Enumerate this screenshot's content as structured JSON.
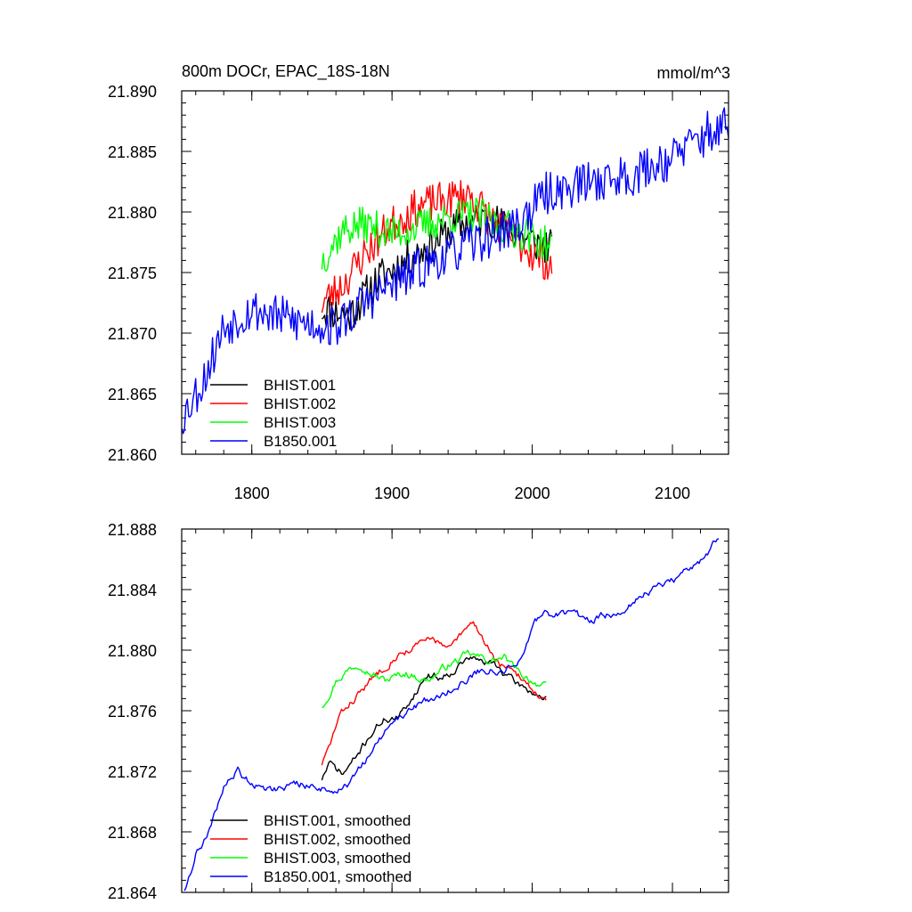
{
  "chart_data": [
    {
      "type": "line",
      "title": "800m DOCr, EPAC_18S-18N",
      "units": "mmol/m^3",
      "xlim": [
        1750,
        2140
      ],
      "ylim": [
        21.86,
        21.89
      ],
      "xticks": [
        1800,
        1900,
        2000,
        2100
      ],
      "yticks": [
        21.86,
        21.865,
        21.87,
        21.875,
        21.88,
        21.885,
        21.89
      ],
      "ytick_labels": [
        "21.860",
        "21.865",
        "21.870",
        "21.875",
        "21.880",
        "21.885",
        "21.890"
      ],
      "xtick_labels": [
        "1800",
        "1900",
        "2000",
        "2100"
      ],
      "show_xtick_labels": true,
      "legend_position": "bottom-left",
      "series": [
        {
          "name": "BHIST.001",
          "color": "#000000",
          "kind": "noisy",
          "x": [
            1850,
            1870,
            1890,
            1910,
            1930,
            1950,
            1970,
            1990,
            2014
          ],
          "y": [
            21.872,
            21.8715,
            21.8745,
            21.876,
            21.8775,
            21.879,
            21.8795,
            21.878,
            21.877
          ],
          "noise": 0.0016,
          "seed": 11
        },
        {
          "name": "BHIST.002",
          "color": "#ff0000",
          "kind": "noisy",
          "x": [
            1850,
            1865,
            1880,
            1900,
            1920,
            1940,
            1955,
            1970,
            1990,
            2014
          ],
          "y": [
            21.8725,
            21.874,
            21.8765,
            21.879,
            21.8805,
            21.881,
            21.8815,
            21.8795,
            21.8775,
            21.8755
          ],
          "noise": 0.0016,
          "seed": 23
        },
        {
          "name": "BHIST.003",
          "color": "#00ff00",
          "kind": "noisy",
          "x": [
            1850,
            1865,
            1880,
            1900,
            1920,
            1940,
            1960,
            1980,
            2000,
            2014
          ],
          "y": [
            21.876,
            21.8785,
            21.879,
            21.8782,
            21.8788,
            21.8795,
            21.8798,
            21.8788,
            21.878,
            21.877
          ],
          "noise": 0.0015,
          "seed": 37
        },
        {
          "name": "B1850.001",
          "color": "#0000ff",
          "kind": "noisy",
          "x": [
            1750,
            1765,
            1780,
            1800,
            1830,
            1860,
            1880,
            1900,
            1930,
            1960,
            1990,
            2010,
            2040,
            2070,
            2100,
            2125,
            2140
          ],
          "y": [
            21.863,
            21.866,
            21.8705,
            21.872,
            21.871,
            21.8705,
            21.8725,
            21.874,
            21.876,
            21.8775,
            21.879,
            21.8815,
            21.8825,
            21.883,
            21.8845,
            21.8865,
            21.887
          ],
          "noise": 0.0018,
          "seed": 53
        }
      ]
    },
    {
      "type": "line",
      "title": "",
      "units": "",
      "xlim": [
        1750,
        2140
      ],
      "ylim": [
        21.864,
        21.888
      ],
      "xticks": [
        1800,
        1900,
        2000,
        2100
      ],
      "yticks": [
        21.864,
        21.868,
        21.872,
        21.876,
        21.88,
        21.884,
        21.888
      ],
      "ytick_labels": [
        "21.864",
        "21.868",
        "21.872",
        "21.876",
        "21.880",
        "21.884",
        "21.888"
      ],
      "xtick_labels": [
        "",
        "",
        "",
        ""
      ],
      "show_xtick_labels": false,
      "legend_position": "bottom-left",
      "series": [
        {
          "name": "BHIST.001, smoothed",
          "color": "#000000",
          "kind": "smooth",
          "x": [
            1850,
            1855,
            1865,
            1875,
            1885,
            1895,
            1905,
            1915,
            1925,
            1935,
            1945,
            1955,
            1965,
            1975,
            1985,
            1995,
            2005,
            2010
          ],
          "y": [
            21.8715,
            21.8725,
            21.8718,
            21.873,
            21.8745,
            21.8755,
            21.8755,
            21.877,
            21.8784,
            21.8782,
            21.8788,
            21.8795,
            21.8792,
            21.879,
            21.878,
            21.8775,
            21.877,
            21.8768
          ],
          "noise": 0.0002,
          "seed": 71
        },
        {
          "name": "BHIST.002, smoothed",
          "color": "#ff0000",
          "kind": "smooth",
          "x": [
            1850,
            1855,
            1862,
            1870,
            1880,
            1890,
            1900,
            1915,
            1930,
            1940,
            1950,
            1958,
            1965,
            1975,
            1985,
            1995,
            2005,
            2010
          ],
          "y": [
            21.8725,
            21.8735,
            21.8755,
            21.8765,
            21.8775,
            21.8785,
            21.8795,
            21.8802,
            21.8808,
            21.88,
            21.881,
            21.8818,
            21.8808,
            21.8792,
            21.8785,
            21.878,
            21.877,
            21.8765
          ],
          "noise": 0.0002,
          "seed": 83
        },
        {
          "name": "BHIST.003, smoothed",
          "color": "#00ff00",
          "kind": "smooth",
          "x": [
            1850,
            1860,
            1870,
            1878,
            1885,
            1895,
            1910,
            1925,
            1940,
            1955,
            1970,
            1980,
            1990,
            2000,
            2010
          ],
          "y": [
            21.8763,
            21.878,
            21.8788,
            21.8792,
            21.8785,
            21.878,
            21.8785,
            21.878,
            21.879,
            21.8797,
            21.8793,
            21.8795,
            21.8785,
            21.878,
            21.8775
          ],
          "noise": 0.0002,
          "seed": 97
        },
        {
          "name": "B1850.001, smoothed",
          "color": "#0000ff",
          "kind": "smooth",
          "x": [
            1752,
            1760,
            1770,
            1780,
            1790,
            1800,
            1815,
            1830,
            1845,
            1860,
            1870,
            1880,
            1895,
            1910,
            1930,
            1950,
            1965,
            1980,
            1995,
            2005,
            2020,
            2040,
            2060,
            2080,
            2100,
            2120,
            2133
          ],
          "y": [
            21.8642,
            21.8665,
            21.868,
            21.871,
            21.872,
            21.8712,
            21.8708,
            21.8712,
            21.871,
            21.8707,
            21.8712,
            21.8725,
            21.8745,
            21.876,
            21.8768,
            21.8778,
            21.8788,
            21.8785,
            21.88,
            21.8822,
            21.8825,
            21.882,
            21.8825,
            21.8838,
            21.8845,
            21.886,
            21.8873
          ],
          "noise": 0.0002,
          "seed": 109
        }
      ]
    }
  ]
}
